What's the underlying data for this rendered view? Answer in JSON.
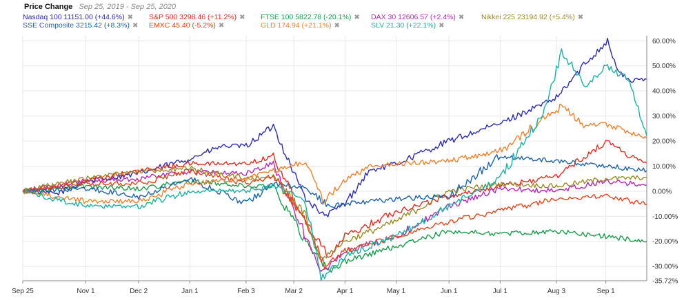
{
  "header": {
    "title": "Price Change",
    "subtitle": "Sep 25, 2019 - Sep 25, 2020"
  },
  "chart_data": {
    "type": "line",
    "title": "Price Change",
    "subtitle": "Sep 25, 2019 - Sep 25, 2020",
    "x_tick_labels": [
      "Sep 25",
      "Nov 1",
      "Dec 2",
      "Jan 1",
      "Feb 3",
      "Mar 2",
      "Apr 1",
      "May 1",
      "Jun 1",
      "Jul 1",
      "Aug 3",
      "Sep 1"
    ],
    "x_ticks": [
      "2019-09-25",
      "2019-11-01",
      "2019-12-02",
      "2020-01-01",
      "2020-02-03",
      "2020-03-02",
      "2020-04-01",
      "2020-05-01",
      "2020-06-01",
      "2020-07-01",
      "2020-08-03",
      "2020-09-01"
    ],
    "y_tick_labels": [
      "60.00%",
      "50.00%",
      "40.00%",
      "30.00%",
      "20.00%",
      "10.00%",
      "0.00%",
      "-10.00%",
      "-20.00%",
      "-30.00%",
      "-35.72%"
    ],
    "y_ticks": [
      60,
      50,
      40,
      30,
      20,
      10,
      0,
      -10,
      -20,
      -30,
      -35.72
    ],
    "ylim": [
      -35.72,
      62
    ],
    "xlim": [
      "2019-09-25",
      "2020-09-25"
    ],
    "grid": true,
    "legend_position": "top",
    "series": [
      {
        "name": "Nasdaq 100",
        "legend": "Nasdaq 100 11151.00 (+44.6%)",
        "color": "#2a2aae",
        "points": [
          [
            "2019-09-25",
            0
          ],
          [
            "2019-10-15",
            -1
          ],
          [
            "2019-11-01",
            4
          ],
          [
            "2019-12-02",
            7
          ],
          [
            "2020-01-01",
            13
          ],
          [
            "2020-01-20",
            18
          ],
          [
            "2020-02-03",
            18
          ],
          [
            "2020-02-19",
            26
          ],
          [
            "2020-02-28",
            12
          ],
          [
            "2020-03-09",
            -3
          ],
          [
            "2020-03-20",
            -10
          ],
          [
            "2020-04-01",
            -5
          ],
          [
            "2020-04-15",
            8
          ],
          [
            "2020-05-01",
            11
          ],
          [
            "2020-06-01",
            20
          ],
          [
            "2020-07-01",
            27
          ],
          [
            "2020-07-20",
            33
          ],
          [
            "2020-08-03",
            37
          ],
          [
            "2020-08-20",
            51
          ],
          [
            "2020-09-02",
            60
          ],
          [
            "2020-09-08",
            48
          ],
          [
            "2020-09-15",
            44
          ],
          [
            "2020-09-25",
            44.6
          ]
        ]
      },
      {
        "name": "S&P 500",
        "legend": "S&P 500 3298.46 (+11.2%)",
        "color": "#e0281e",
        "points": [
          [
            "2019-09-25",
            0
          ],
          [
            "2019-11-01",
            4
          ],
          [
            "2019-12-02",
            8
          ],
          [
            "2020-01-01",
            11
          ],
          [
            "2020-02-03",
            11
          ],
          [
            "2020-02-19",
            14
          ],
          [
            "2020-03-09",
            -12
          ],
          [
            "2020-03-23",
            -26
          ],
          [
            "2020-04-01",
            -18
          ],
          [
            "2020-05-01",
            -8
          ],
          [
            "2020-06-01",
            -2
          ],
          [
            "2020-07-01",
            2
          ],
          [
            "2020-08-03",
            6
          ],
          [
            "2020-08-20",
            14
          ],
          [
            "2020-09-02",
            20
          ],
          [
            "2020-09-15",
            14
          ],
          [
            "2020-09-25",
            11.2
          ]
        ]
      },
      {
        "name": "FTSE 100",
        "legend": "FTSE 100 5822.78 (-20.1%)",
        "color": "#1a9a4a",
        "points": [
          [
            "2019-09-25",
            0
          ],
          [
            "2019-11-01",
            2
          ],
          [
            "2019-12-02",
            1
          ],
          [
            "2020-01-01",
            4
          ],
          [
            "2020-02-03",
            2
          ],
          [
            "2020-02-19",
            2
          ],
          [
            "2020-03-09",
            -20
          ],
          [
            "2020-03-23",
            -32
          ],
          [
            "2020-04-01",
            -28
          ],
          [
            "2020-05-01",
            -22
          ],
          [
            "2020-06-01",
            -16
          ],
          [
            "2020-07-01",
            -17
          ],
          [
            "2020-08-03",
            -16
          ],
          [
            "2020-09-01",
            -18
          ],
          [
            "2020-09-25",
            -20.1
          ]
        ]
      },
      {
        "name": "DAX 30",
        "legend": "DAX 30 12606.57 (+2.4%)",
        "color": "#b22ab4",
        "points": [
          [
            "2019-09-25",
            0
          ],
          [
            "2019-11-01",
            4
          ],
          [
            "2019-12-02",
            5
          ],
          [
            "2020-01-01",
            8
          ],
          [
            "2020-02-03",
            7
          ],
          [
            "2020-02-19",
            11
          ],
          [
            "2020-03-09",
            -18
          ],
          [
            "2020-03-18",
            -33
          ],
          [
            "2020-04-01",
            -24
          ],
          [
            "2020-05-01",
            -18
          ],
          [
            "2020-06-01",
            -6
          ],
          [
            "2020-07-01",
            1
          ],
          [
            "2020-08-03",
            0
          ],
          [
            "2020-09-01",
            4
          ],
          [
            "2020-09-25",
            2.4
          ]
        ]
      },
      {
        "name": "Nikkei 225",
        "legend": "Nikkei 225 23194.92 (+5.4%)",
        "color": "#9a8a2a",
        "points": [
          [
            "2019-09-25",
            0
          ],
          [
            "2019-11-01",
            5
          ],
          [
            "2019-12-02",
            8
          ],
          [
            "2020-01-01",
            9
          ],
          [
            "2020-02-03",
            5
          ],
          [
            "2020-02-19",
            6
          ],
          [
            "2020-03-09",
            -10
          ],
          [
            "2020-03-18",
            -27
          ],
          [
            "2020-04-01",
            -20
          ],
          [
            "2020-05-01",
            -12
          ],
          [
            "2020-06-01",
            0
          ],
          [
            "2020-07-01",
            3
          ],
          [
            "2020-08-03",
            2
          ],
          [
            "2020-09-01",
            5
          ],
          [
            "2020-09-25",
            5.4
          ]
        ]
      },
      {
        "name": "SSE Composite",
        "legend": "SSE Composite 3215.42 (+8.3%)",
        "color": "#1e62a8",
        "points": [
          [
            "2019-09-25",
            0
          ],
          [
            "2019-11-01",
            1
          ],
          [
            "2019-12-02",
            -2
          ],
          [
            "2020-01-01",
            5
          ],
          [
            "2020-02-03",
            -5
          ],
          [
            "2020-02-19",
            3
          ],
          [
            "2020-03-09",
            1
          ],
          [
            "2020-03-23",
            -6
          ],
          [
            "2020-04-01",
            -5
          ],
          [
            "2020-05-01",
            -3
          ],
          [
            "2020-06-01",
            -2
          ],
          [
            "2020-07-01",
            14
          ],
          [
            "2020-08-03",
            12
          ],
          [
            "2020-09-01",
            10
          ],
          [
            "2020-09-25",
            8.3
          ]
        ]
      },
      {
        "name": "EMXC",
        "legend": "EMXC 45.40 (-5.2%)",
        "color": "#e0451e",
        "points": [
          [
            "2019-09-25",
            0
          ],
          [
            "2019-11-01",
            3
          ],
          [
            "2019-12-02",
            3
          ],
          [
            "2020-01-01",
            8
          ],
          [
            "2020-02-03",
            3
          ],
          [
            "2020-02-19",
            6
          ],
          [
            "2020-03-09",
            -12
          ],
          [
            "2020-03-20",
            -30
          ],
          [
            "2020-04-01",
            -24
          ],
          [
            "2020-05-01",
            -18
          ],
          [
            "2020-06-01",
            -12
          ],
          [
            "2020-07-01",
            -8
          ],
          [
            "2020-08-03",
            -3
          ],
          [
            "2020-09-01",
            -2
          ],
          [
            "2020-09-25",
            -5.2
          ]
        ]
      },
      {
        "name": "GLD",
        "legend": "GLD 174.94 (+21.1%)",
        "color": "#f08030",
        "points": [
          [
            "2019-09-25",
            0
          ],
          [
            "2019-11-01",
            -4
          ],
          [
            "2019-12-02",
            -4
          ],
          [
            "2020-01-01",
            3
          ],
          [
            "2020-02-03",
            5
          ],
          [
            "2020-02-19",
            8
          ],
          [
            "2020-03-09",
            12
          ],
          [
            "2020-03-19",
            -4
          ],
          [
            "2020-04-01",
            4
          ],
          [
            "2020-04-15",
            10
          ],
          [
            "2020-05-01",
            11
          ],
          [
            "2020-06-01",
            12
          ],
          [
            "2020-07-01",
            16
          ],
          [
            "2020-08-06",
            34
          ],
          [
            "2020-08-20",
            26
          ],
          [
            "2020-09-01",
            27
          ],
          [
            "2020-09-25",
            21.1
          ]
        ]
      },
      {
        "name": "SLV",
        "legend": "SLV 21.30 (+22.1%)",
        "color": "#1aafa0",
        "points": [
          [
            "2019-09-25",
            0
          ],
          [
            "2019-11-01",
            -6
          ],
          [
            "2019-12-02",
            -6
          ],
          [
            "2020-01-01",
            0
          ],
          [
            "2020-02-03",
            0
          ],
          [
            "2020-02-19",
            2
          ],
          [
            "2020-03-09",
            -4
          ],
          [
            "2020-03-18",
            -35
          ],
          [
            "2020-04-01",
            -26
          ],
          [
            "2020-05-01",
            -18
          ],
          [
            "2020-06-01",
            -6
          ],
          [
            "2020-07-01",
            5
          ],
          [
            "2020-07-27",
            32
          ],
          [
            "2020-08-06",
            56
          ],
          [
            "2020-08-20",
            42
          ],
          [
            "2020-09-01",
            50
          ],
          [
            "2020-09-15",
            44
          ],
          [
            "2020-09-21",
            30
          ],
          [
            "2020-09-25",
            22.1
          ]
        ]
      }
    ]
  }
}
